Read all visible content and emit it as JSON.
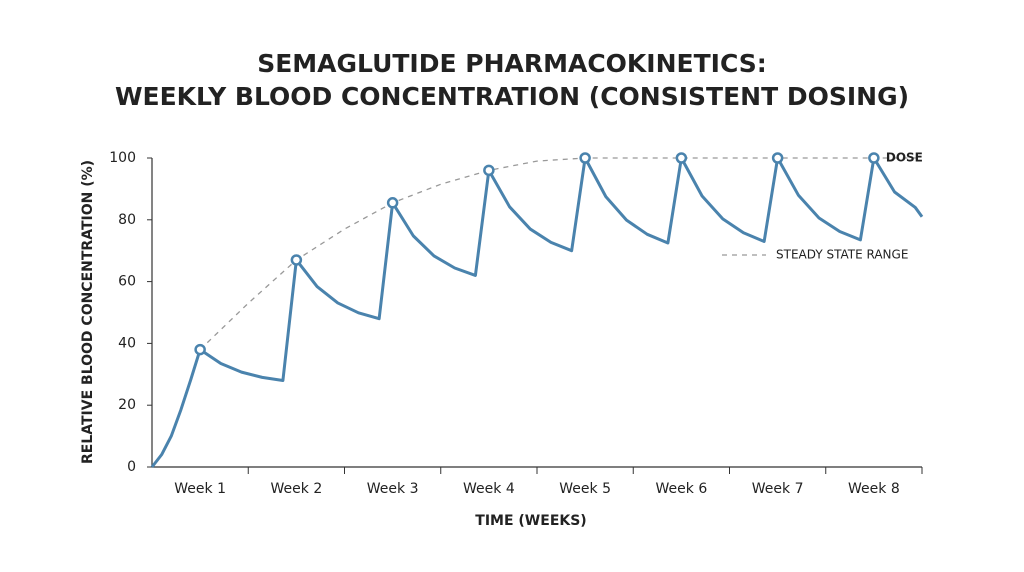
{
  "chart_data": {
    "type": "line",
    "title": [
      "SEMAGLUTIDE PHARMACOKINETICS:",
      "WEEKLY BLOOD CONCENTRATION (CONSISTENT DOSING)"
    ],
    "x_label": "TIME (WEEKS)",
    "y_label": "RELATIVE BLOOD CONCENTRATION (%)",
    "xlim": [
      0,
      8
    ],
    "xticks": [
      {
        "value": 0.5,
        "label": "Week 1"
      },
      {
        "value": 1.5,
        "label": "Week 2"
      },
      {
        "value": 2.5,
        "label": "Week 3"
      },
      {
        "value": 3.5,
        "label": "Week 4"
      },
      {
        "value": 4.5,
        "label": "Week 5"
      },
      {
        "value": 5.5,
        "label": "Week 6"
      },
      {
        "value": 6.5,
        "label": "Week 7"
      },
      {
        "value": 7.5,
        "label": "Week 8"
      }
    ],
    "ylim": [
      0,
      100
    ],
    "yticks": [
      0,
      20,
      40,
      60,
      80,
      100
    ],
    "grid": false,
    "series": [
      {
        "color": "#4a83ad",
        "style": "solid",
        "x": [
          0,
          0.1,
          0.2,
          0.3,
          0.4,
          0.5,
          0.715,
          0.93,
          1.145,
          1.36,
          1.5,
          1.715,
          1.93,
          2.145,
          2.36,
          2.5,
          2.715,
          2.93,
          3.145,
          3.36,
          3.5,
          3.715,
          3.93,
          4.145,
          4.36,
          4.5,
          4.715,
          4.93,
          5.145,
          5.36,
          5.5,
          5.715,
          5.93,
          6.145,
          6.36,
          6.5,
          6.715,
          6.93,
          7.145,
          7.36,
          7.5,
          7.715,
          7.93,
          8.0
        ],
        "values": [
          0,
          4,
          10,
          18.5,
          28,
          38,
          33.5,
          30.7,
          29,
          28,
          67,
          58.4,
          53.1,
          49.9,
          48,
          85.5,
          74.8,
          68.3,
          64.4,
          62,
          96,
          84.2,
          77,
          72.7,
          70,
          100,
          87.5,
          79.9,
          75.3,
          72.5,
          100,
          87.7,
          80.3,
          75.8,
          73,
          100,
          88,
          80.6,
          76.2,
          73.5,
          100,
          89,
          84,
          81
        ]
      },
      {
        "name": "STEADY STATE RANGE",
        "color": "#999999",
        "style": "dashed",
        "x": [
          0.5,
          1,
          1.5,
          2,
          2.5,
          3,
          3.5,
          4,
          4.5,
          5,
          6,
          7,
          8
        ],
        "values": [
          38,
          53,
          67,
          77,
          85.5,
          91.5,
          96,
          99,
          100,
          100,
          100,
          100,
          100
        ]
      },
      {
        "name": "DOSE",
        "color": "#4a83ad",
        "style": "markers",
        "x": [
          0.5,
          1.5,
          2.5,
          3.5,
          4.5,
          5.5,
          6.5,
          7.5
        ],
        "values": [
          38,
          67,
          85.5,
          96,
          100,
          100,
          100,
          100
        ]
      }
    ]
  }
}
